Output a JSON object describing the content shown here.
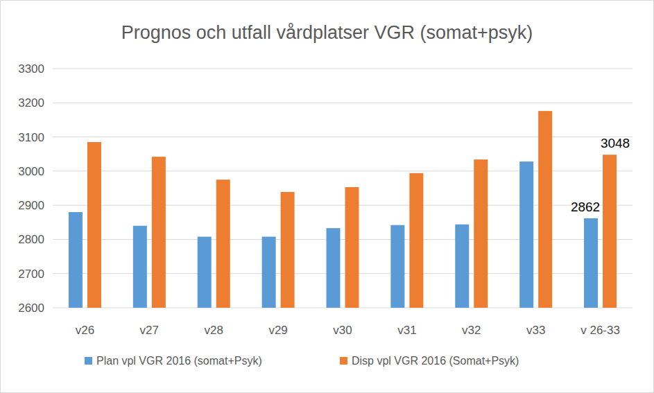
{
  "chart_data": {
    "type": "bar",
    "title": "Prognos och utfall vårdplatser VGR (somat+psyk)",
    "categories": [
      "v26",
      "v27",
      "v28",
      "v29",
      "v30",
      "v31",
      "v32",
      "v33",
      "v 26-33"
    ],
    "series": [
      {
        "name": "Plan vpl VGR 2016 (somat+Psyk)",
        "color": "#5b9bd5",
        "values": [
          2880,
          2840,
          2808,
          2808,
          2833,
          2842,
          2844,
          3028,
          2862
        ],
        "value_labels": [
          null,
          null,
          null,
          null,
          null,
          null,
          null,
          null,
          "2862"
        ]
      },
      {
        "name": "Disp vpl VGR 2016 (Somat+Psyk)",
        "color": "#ed7d31",
        "values": [
          3085,
          3042,
          2975,
          2939,
          2953,
          2994,
          3034,
          3176,
          3048
        ],
        "value_labels": [
          null,
          null,
          null,
          null,
          null,
          null,
          null,
          null,
          "3048"
        ]
      }
    ],
    "ylim": [
      2600,
      3300
    ],
    "yticks": [
      2600,
      2700,
      2800,
      2900,
      3000,
      3100,
      3200,
      3300
    ],
    "grid": true,
    "legend": "bottom"
  }
}
